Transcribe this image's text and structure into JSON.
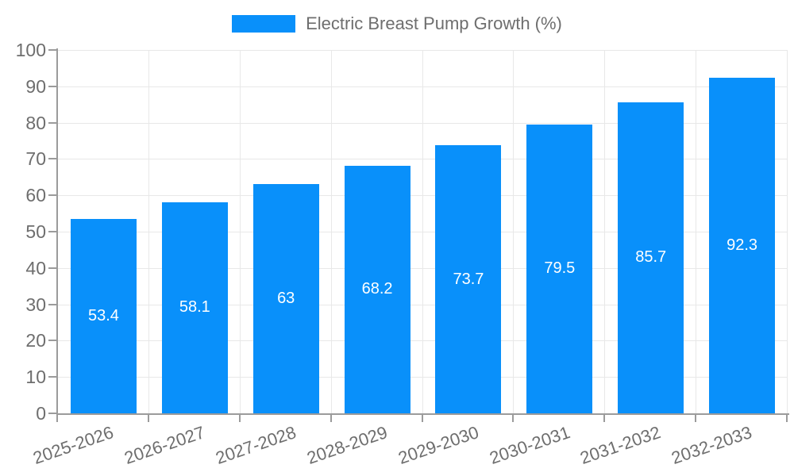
{
  "legend": {
    "items": [
      {
        "label": "Electric Breast Pump Growth (%)"
      }
    ]
  },
  "chart_data": {
    "type": "bar",
    "title": "",
    "xlabel": "",
    "ylabel": "",
    "categories": [
      "2025-2026",
      "2026-2027",
      "2027-2028",
      "2028-2029",
      "2029-2030",
      "2030-2031",
      "2031-2032",
      "2032-2033"
    ],
    "series": [
      {
        "name": "Electric Breast Pump Growth (%)",
        "values": [
          53.4,
          58.1,
          63,
          68.2,
          73.7,
          79.5,
          85.7,
          92.3
        ]
      }
    ],
    "value_labels": [
      "53.4",
      "58.1",
      "63",
      "68.2",
      "73.7",
      "79.5",
      "85.7",
      "92.3"
    ],
    "ylim": [
      0,
      100
    ],
    "ytick_step": 10,
    "ytick_labels": [
      "0",
      "10",
      "20",
      "30",
      "40",
      "50",
      "60",
      "70",
      "80",
      "90",
      "100"
    ],
    "grid": true,
    "legend_position": "top-center",
    "bar_color": "#0990fa",
    "value_label_color": "#ffffff",
    "axis_color": "#9b9b9b",
    "grid_color": "#e8e8e8",
    "text_color": "#6e6e6e"
  }
}
